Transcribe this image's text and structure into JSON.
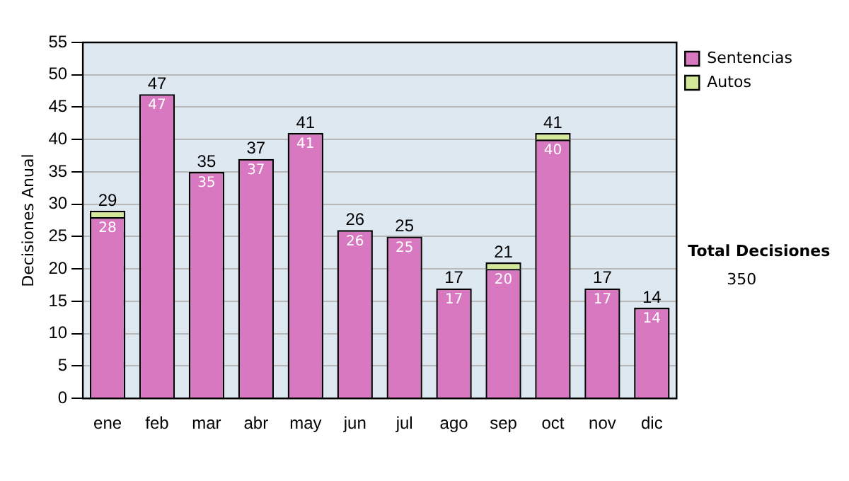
{
  "chart_data": {
    "type": "bar",
    "stacked": true,
    "ylabel": "Decisiones Anual",
    "categories": [
      "ene",
      "feb",
      "mar",
      "abr",
      "may",
      "jun",
      "jul",
      "ago",
      "sep",
      "oct",
      "nov",
      "dic"
    ],
    "series": [
      {
        "name": "Sentencias",
        "color": "#d878c0",
        "values": [
          28,
          47,
          35,
          37,
          41,
          26,
          25,
          17,
          20,
          40,
          17,
          14
        ],
        "value_labels": [
          "28",
          "47",
          "35",
          "37",
          "41",
          "26",
          "25",
          "17",
          "20",
          "40",
          "17",
          "14"
        ]
      },
      {
        "name": "Autos",
        "color": "#d4e89a",
        "values": [
          1,
          null,
          null,
          null,
          null,
          null,
          null,
          null,
          1,
          1,
          null,
          null
        ]
      }
    ],
    "totals": [
      "29",
      "47",
      "35",
      "37",
      "41",
      "26",
      "25",
      "17",
      "21",
      "41",
      "17",
      "14"
    ],
    "ylim": [
      0,
      55
    ],
    "yticks": [
      0,
      5,
      10,
      15,
      20,
      25,
      30,
      35,
      40,
      45,
      50,
      55
    ],
    "grid": "y",
    "legend": "right",
    "annotations": [
      "Total Decisiones",
      "350"
    ]
  }
}
